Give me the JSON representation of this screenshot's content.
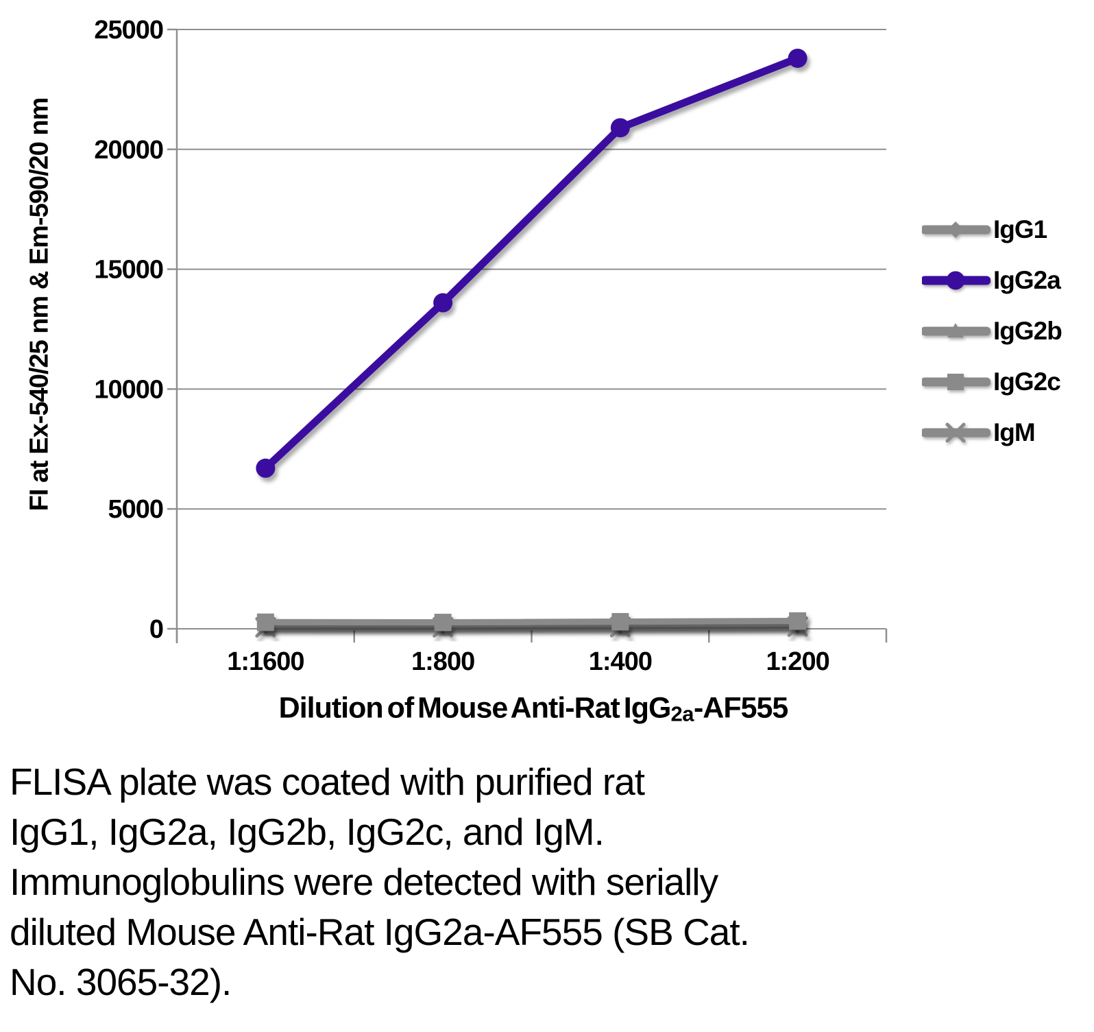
{
  "colors": {
    "background": "#ffffff",
    "axis": "#8f8f8f",
    "text": "#000000",
    "series_gray": "#8a8a8a",
    "series_purple": "#3a0d9f"
  },
  "chart_data": {
    "type": "line",
    "title": "",
    "ylabel": "FI at Ex-540/25 nm & Em-590/20 nm",
    "xlabel": "Dilution of Mouse Anti-Rat IgG2a-AF555",
    "xlabel_parts": {
      "prefix": "Dilution of Mouse Anti-Rat IgG",
      "subscript": "2a",
      "suffix": "-AF555"
    },
    "categories": [
      "1:1600",
      "1:800",
      "1:400",
      "1:200"
    ],
    "y_ticks": [
      0,
      5000,
      10000,
      15000,
      20000,
      25000
    ],
    "ylim": [
      0,
      25000
    ],
    "grid": "horizontal",
    "legend_position": "right",
    "series": [
      {
        "name": "IgG1",
        "color": "#8a8a8a",
        "marker": "diamond",
        "values": [
          120,
          120,
          130,
          150
        ]
      },
      {
        "name": "IgG2a",
        "color": "#3a0d9f",
        "marker": "circle",
        "values": [
          6700,
          13600,
          20900,
          23800
        ]
      },
      {
        "name": "IgG2b",
        "color": "#8a8a8a",
        "marker": "triangle",
        "values": [
          180,
          180,
          200,
          220
        ]
      },
      {
        "name": "IgG2c",
        "color": "#8a8a8a",
        "marker": "square",
        "values": [
          280,
          270,
          300,
          330
        ]
      },
      {
        "name": "IgM",
        "color": "#8a8a8a",
        "marker": "star",
        "values": [
          60,
          60,
          70,
          90
        ]
      }
    ],
    "draw_order": [
      "IgG1",
      "IgM",
      "IgG2b",
      "IgG2c",
      "IgG2a"
    ]
  },
  "caption_lines": [
    "FLISA plate was coated with purified rat",
    "IgG1, IgG2a, IgG2b, IgG2c, and IgM.",
    "Immunoglobulins were detected with serially",
    "diluted Mouse Anti-Rat IgG2a-AF555 (SB Cat.",
    "No. 3065-32)."
  ]
}
